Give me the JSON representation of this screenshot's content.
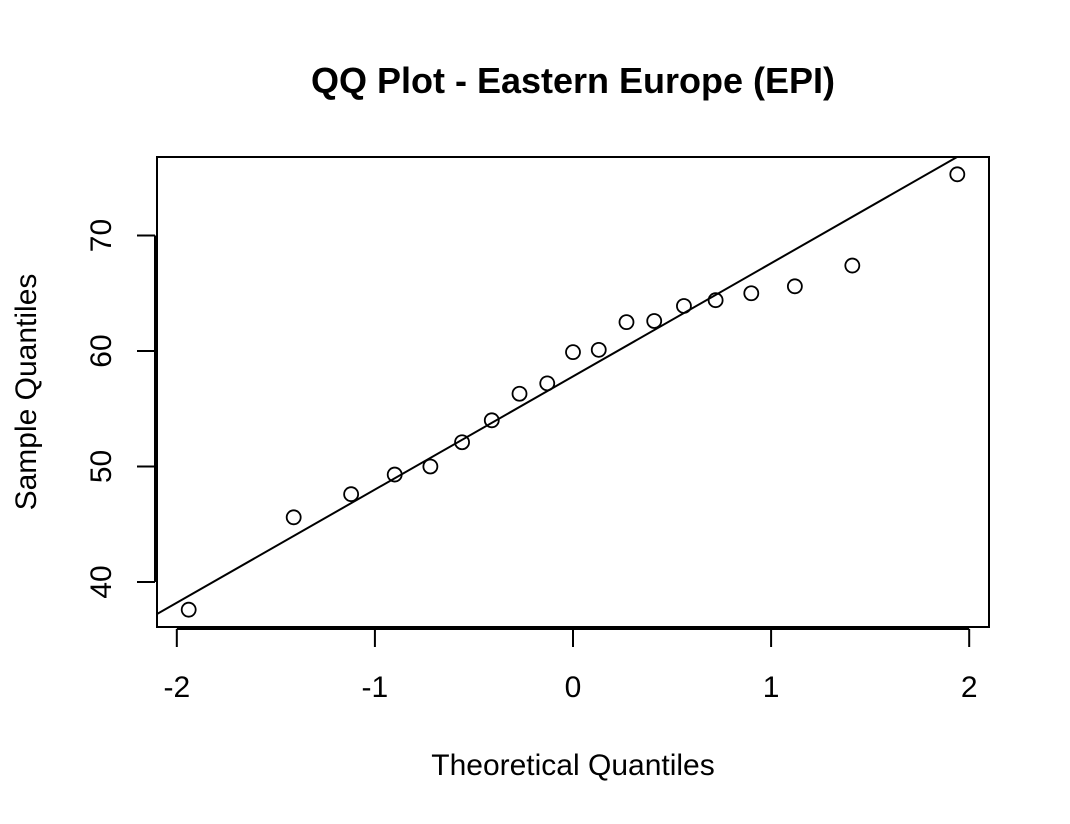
{
  "chart_data": {
    "type": "scatter",
    "title": "QQ Plot - Eastern Europe (EPI)",
    "xlabel": "Theoretical Quantiles",
    "ylabel": "Sample Quantiles",
    "xlim": [
      -2.1,
      2.1
    ],
    "ylim": [
      36.1,
      76.8
    ],
    "x_ticks": [
      -2,
      -1,
      0,
      1,
      2
    ],
    "x_tick_labels": [
      "-2",
      "-1",
      "0",
      "1",
      "2"
    ],
    "y_ticks": [
      40,
      50,
      60,
      70
    ],
    "y_tick_labels": [
      "40",
      "50",
      "60",
      "70"
    ],
    "grid": false,
    "legend": "none",
    "series": [
      {
        "marker": "open-circle",
        "points": [
          {
            "x": -1.94,
            "y": 37.6
          },
          {
            "x": -1.41,
            "y": 45.6
          },
          {
            "x": -1.12,
            "y": 47.6
          },
          {
            "x": -0.9,
            "y": 49.3
          },
          {
            "x": -0.72,
            "y": 50.0
          },
          {
            "x": -0.56,
            "y": 52.1
          },
          {
            "x": -0.41,
            "y": 54.0
          },
          {
            "x": -0.27,
            "y": 56.3
          },
          {
            "x": -0.13,
            "y": 57.2
          },
          {
            "x": 0.0,
            "y": 59.9
          },
          {
            "x": 0.13,
            "y": 60.1
          },
          {
            "x": 0.27,
            "y": 62.5
          },
          {
            "x": 0.41,
            "y": 62.6
          },
          {
            "x": 0.56,
            "y": 63.9
          },
          {
            "x": 0.72,
            "y": 64.4
          },
          {
            "x": 0.9,
            "y": 65.0
          },
          {
            "x": 1.12,
            "y": 65.6
          },
          {
            "x": 1.41,
            "y": 67.4
          },
          {
            "x": 1.94,
            "y": 75.3
          }
        ]
      }
    ],
    "reference_line": {
      "intercept": 57.8,
      "slope": 9.8
    }
  }
}
